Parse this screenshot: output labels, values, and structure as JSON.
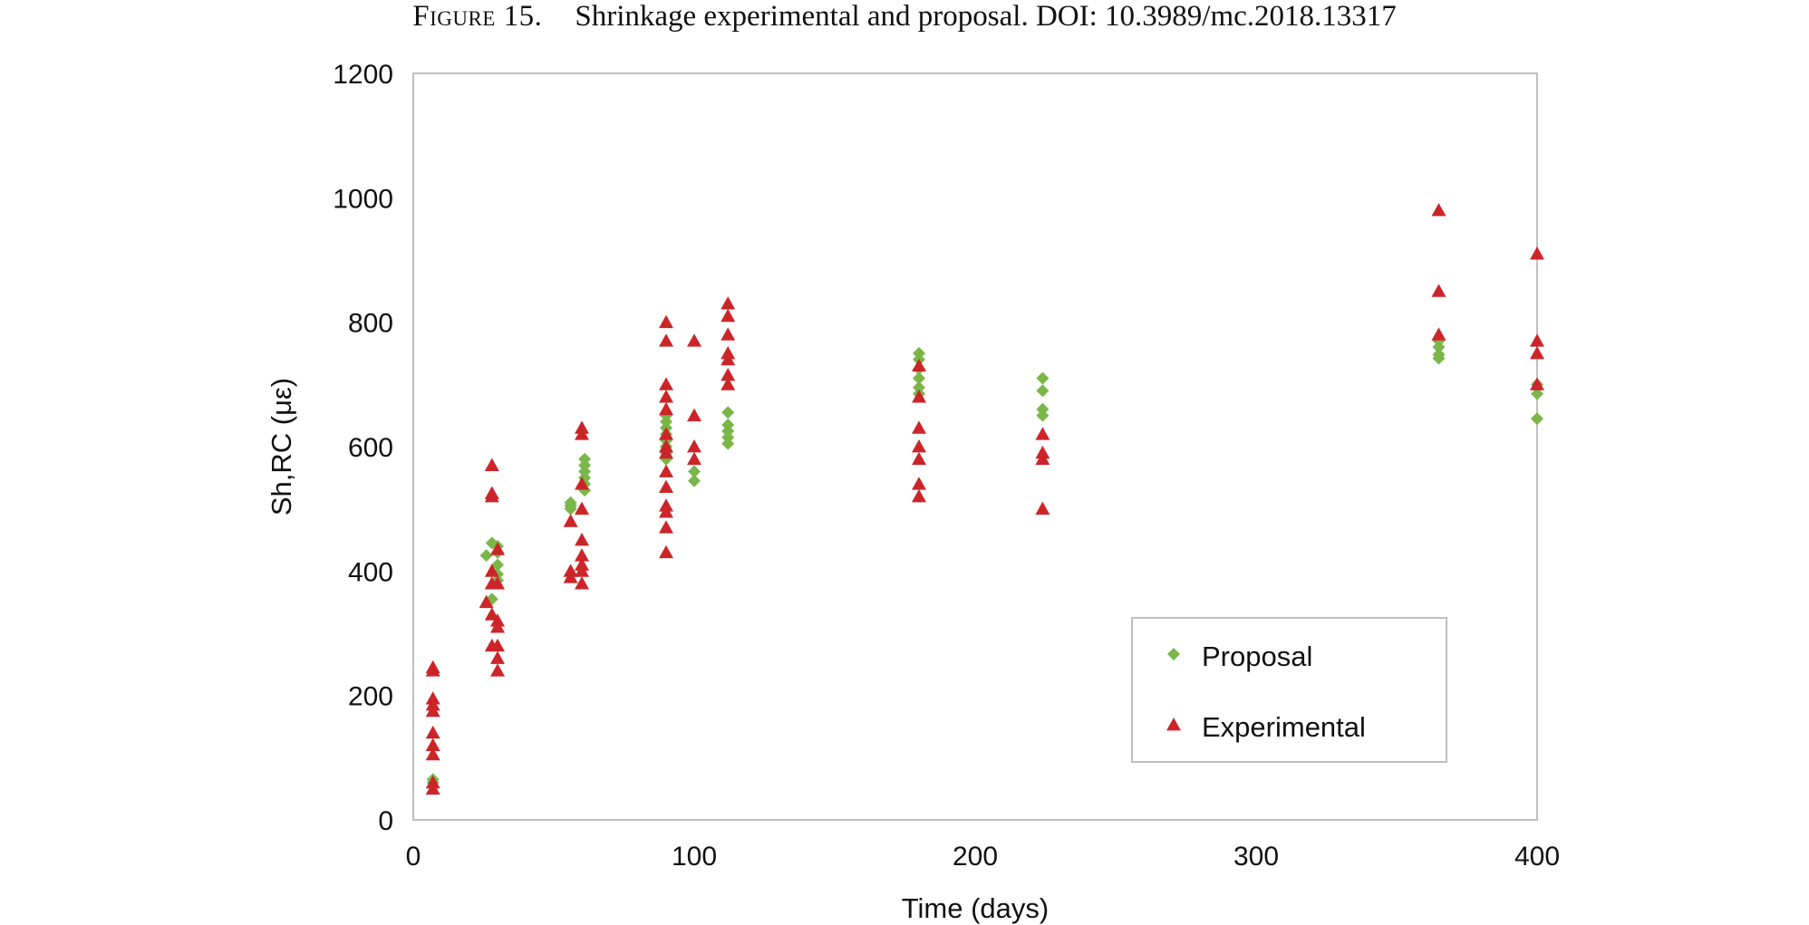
{
  "caption": {
    "label": "Figure 15.",
    "text": "Shrinkage experimental and proposal. DOI: 10.3989/mc.2018.13317"
  },
  "colors": {
    "proposal": "#7ab648",
    "experimental": "#cc2529",
    "frame": "#bfbfbf"
  },
  "chart_data": {
    "type": "scatter",
    "title": "",
    "xlabel": "Time (days)",
    "ylabel": "Sh,RC (με)",
    "xlim": [
      0,
      400
    ],
    "ylim": [
      0,
      1200
    ],
    "xticks": [
      0,
      100,
      200,
      300,
      400
    ],
    "yticks": [
      0,
      200,
      400,
      600,
      800,
      1000,
      1200
    ],
    "grid": false,
    "legend_position": "bottom-right",
    "series": [
      {
        "name": "Proposal",
        "marker": "diamond",
        "points": [
          [
            7,
            65
          ],
          [
            7,
            60
          ],
          [
            26,
            425
          ],
          [
            28,
            445
          ],
          [
            28,
            355
          ],
          [
            30,
            440
          ],
          [
            30,
            430
          ],
          [
            30,
            410
          ],
          [
            30,
            395
          ],
          [
            30,
            385
          ],
          [
            56,
            510
          ],
          [
            56,
            505
          ],
          [
            56,
            500
          ],
          [
            61,
            580
          ],
          [
            61,
            570
          ],
          [
            61,
            560
          ],
          [
            61,
            550
          ],
          [
            61,
            540
          ],
          [
            61,
            530
          ],
          [
            90,
            650
          ],
          [
            90,
            640
          ],
          [
            90,
            630
          ],
          [
            90,
            620
          ],
          [
            90,
            610
          ],
          [
            90,
            600
          ],
          [
            90,
            590
          ],
          [
            90,
            580
          ],
          [
            100,
            560
          ],
          [
            100,
            545
          ],
          [
            112,
            655
          ],
          [
            112,
            635
          ],
          [
            112,
            625
          ],
          [
            112,
            615
          ],
          [
            112,
            605
          ],
          [
            180,
            750
          ],
          [
            180,
            740
          ],
          [
            180,
            725
          ],
          [
            180,
            710
          ],
          [
            180,
            695
          ],
          [
            180,
            685
          ],
          [
            224,
            710
          ],
          [
            224,
            690
          ],
          [
            224,
            660
          ],
          [
            224,
            650
          ],
          [
            365,
            770
          ],
          [
            365,
            760
          ],
          [
            365,
            748
          ],
          [
            365,
            742
          ],
          [
            400,
            700
          ],
          [
            400,
            685
          ],
          [
            400,
            645
          ]
        ]
      },
      {
        "name": "Experimental",
        "marker": "triangle",
        "points": [
          [
            7,
            245
          ],
          [
            7,
            240
          ],
          [
            7,
            195
          ],
          [
            7,
            185
          ],
          [
            7,
            175
          ],
          [
            7,
            140
          ],
          [
            7,
            120
          ],
          [
            7,
            105
          ],
          [
            7,
            60
          ],
          [
            7,
            50
          ],
          [
            26,
            350
          ],
          [
            28,
            570
          ],
          [
            28,
            525
          ],
          [
            28,
            520
          ],
          [
            28,
            400
          ],
          [
            28,
            380
          ],
          [
            28,
            330
          ],
          [
            28,
            280
          ],
          [
            30,
            435
          ],
          [
            30,
            380
          ],
          [
            30,
            320
          ],
          [
            30,
            310
          ],
          [
            30,
            280
          ],
          [
            30,
            260
          ],
          [
            30,
            240
          ],
          [
            56,
            400
          ],
          [
            56,
            390
          ],
          [
            56,
            480
          ],
          [
            60,
            630
          ],
          [
            60,
            620
          ],
          [
            60,
            540
          ],
          [
            60,
            500
          ],
          [
            60,
            450
          ],
          [
            60,
            425
          ],
          [
            60,
            410
          ],
          [
            60,
            400
          ],
          [
            60,
            380
          ],
          [
            90,
            800
          ],
          [
            90,
            770
          ],
          [
            90,
            700
          ],
          [
            90,
            680
          ],
          [
            90,
            660
          ],
          [
            90,
            620
          ],
          [
            90,
            600
          ],
          [
            90,
            590
          ],
          [
            90,
            560
          ],
          [
            90,
            535
          ],
          [
            90,
            505
          ],
          [
            90,
            495
          ],
          [
            90,
            470
          ],
          [
            90,
            430
          ],
          [
            100,
            770
          ],
          [
            100,
            650
          ],
          [
            100,
            600
          ],
          [
            100,
            580
          ],
          [
            112,
            830
          ],
          [
            112,
            810
          ],
          [
            112,
            780
          ],
          [
            112,
            750
          ],
          [
            112,
            740
          ],
          [
            112,
            715
          ],
          [
            112,
            700
          ],
          [
            180,
            730
          ],
          [
            180,
            680
          ],
          [
            180,
            630
          ],
          [
            180,
            600
          ],
          [
            180,
            580
          ],
          [
            180,
            540
          ],
          [
            180,
            520
          ],
          [
            224,
            620
          ],
          [
            224,
            590
          ],
          [
            224,
            580
          ],
          [
            224,
            500
          ],
          [
            365,
            980
          ],
          [
            365,
            850
          ],
          [
            365,
            780
          ],
          [
            400,
            910
          ],
          [
            400,
            770
          ],
          [
            400,
            750
          ],
          [
            400,
            700
          ]
        ]
      }
    ]
  }
}
